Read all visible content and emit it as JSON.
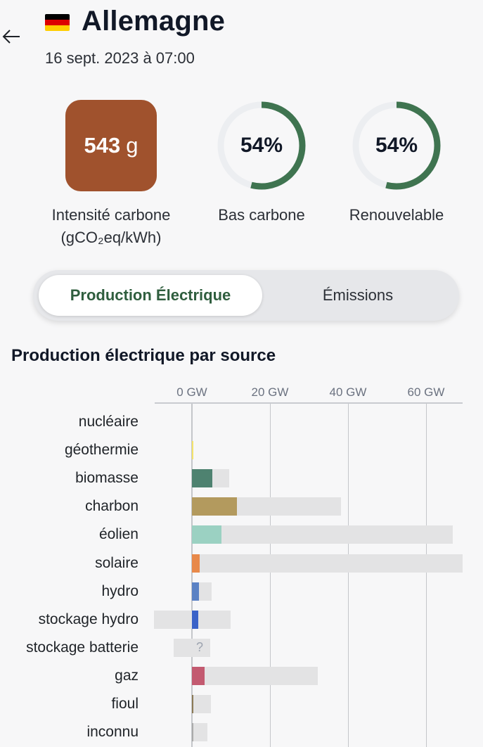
{
  "header": {
    "back_icon": "arrow-left-icon",
    "country": "Allemagne",
    "flag_colors": [
      "#000000",
      "#dd0000",
      "#ffce00"
    ],
    "datetime": "16 sept. 2023 à 07:00"
  },
  "metrics": {
    "carbon_intensity": {
      "value": "543",
      "unit": "g",
      "label_line1": "Intensité carbone",
      "label_line2": "(gCO₂eq/kWh)",
      "color": "#a0522d"
    },
    "low_carbon": {
      "percent": 54,
      "text": "54%",
      "label": "Bas carbone"
    },
    "renewable": {
      "percent": 54,
      "text": "54%",
      "label": "Renouvelable"
    },
    "ring_color": "#3f7450",
    "ring_track_color": "#eceef1"
  },
  "toggle": {
    "active_label": "Production Électrique",
    "inactive_label": "Émissions"
  },
  "section_title": "Production électrique par source",
  "chart_data": {
    "type": "bar",
    "xunit": "GW",
    "xlim": [
      -10,
      70
    ],
    "ticks": [
      {
        "value": 0,
        "label": "0 GW"
      },
      {
        "value": 20,
        "label": "20 GW"
      },
      {
        "value": 40,
        "label": "40 GW"
      },
      {
        "value": 60,
        "label": "60 GW"
      }
    ],
    "categories": [
      "nucléaire",
      "géothermie",
      "biomasse",
      "charbon",
      "éolien",
      "solaire",
      "hydro",
      "stockage hydro",
      "stockage batterie",
      "gaz",
      "fioul",
      "inconnu"
    ],
    "series": [
      {
        "values": [
          0,
          0.2,
          5.2,
          11.5,
          7.6,
          2.0,
          1.8,
          1.7,
          null,
          3.2,
          0.3,
          0.2
        ],
        "colors": [
          "#888888",
          "#f5e46b",
          "#4e8270",
          "#b39a5e",
          "#9bd1c2",
          "#e8894a",
          "#5b82c4",
          "#3b63c8",
          "#9ca3af",
          "#c35a70",
          "#8b7a55",
          "#aaaaaa"
        ]
      },
      {
        "min": [
          0,
          0,
          0,
          0,
          0,
          0,
          0,
          -9.8,
          -4.6,
          0,
          0,
          0
        ],
        "max": [
          0,
          0,
          9.5,
          38.2,
          66.8,
          69.3,
          5.0,
          9.9,
          4.6,
          32.2,
          4.8,
          3.9
        ]
      }
    ],
    "unknown_value_marker": "?"
  }
}
